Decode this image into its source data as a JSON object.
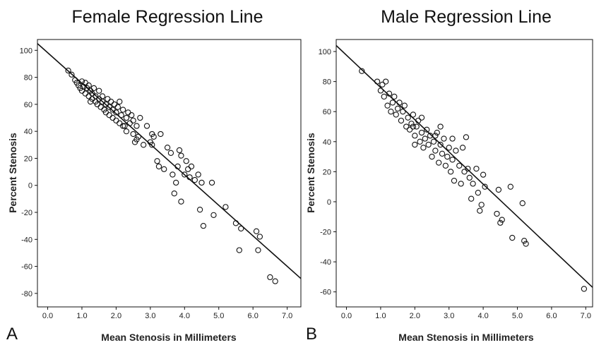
{
  "chart_data": [
    {
      "panel_label": "A",
      "type": "scatter",
      "title": "Female Regression Line",
      "xlabel": "Mean Stenosis in Millimeters",
      "ylabel": "Percent Stenosis",
      "xlim": [
        -0.3,
        7.4
      ],
      "ylim": [
        -90,
        108
      ],
      "xticks": [
        "0.0",
        "1.0",
        "2.0",
        "3.0",
        "4.0",
        "5.0",
        "6.0",
        "7.0"
      ],
      "yticks": [
        "100",
        "80",
        "60",
        "40",
        "20",
        "0",
        "-20",
        "-40",
        "-60",
        "-80"
      ],
      "grid": false,
      "regression_line": {
        "x": [
          -0.3,
          7.4
        ],
        "y": [
          105,
          -69
        ]
      },
      "points": [
        [
          0.6,
          85
        ],
        [
          0.7,
          82
        ],
        [
          0.8,
          78
        ],
        [
          0.85,
          76
        ],
        [
          0.9,
          74
        ],
        [
          0.95,
          72
        ],
        [
          1.0,
          77
        ],
        [
          1.0,
          70
        ],
        [
          1.05,
          73
        ],
        [
          1.1,
          76
        ],
        [
          1.1,
          68
        ],
        [
          1.15,
          72
        ],
        [
          1.2,
          66
        ],
        [
          1.2,
          74
        ],
        [
          1.25,
          70
        ],
        [
          1.3,
          64
        ],
        [
          1.3,
          68
        ],
        [
          1.35,
          72
        ],
        [
          1.4,
          62
        ],
        [
          1.4,
          66
        ],
        [
          1.45,
          60
        ],
        [
          1.5,
          64
        ],
        [
          1.5,
          70
        ],
        [
          1.55,
          58
        ],
        [
          1.6,
          62
        ],
        [
          1.6,
          66
        ],
        [
          1.65,
          56
        ],
        [
          1.7,
          60
        ],
        [
          1.75,
          64
        ],
        [
          1.8,
          52
        ],
        [
          1.8,
          58
        ],
        [
          1.85,
          62
        ],
        [
          1.9,
          50
        ],
        [
          1.9,
          56
        ],
        [
          1.95,
          60
        ],
        [
          2.0,
          48
        ],
        [
          2.0,
          54
        ],
        [
          2.05,
          58
        ],
        [
          2.1,
          46
        ],
        [
          2.1,
          62
        ],
        [
          2.15,
          52
        ],
        [
          2.2,
          56
        ],
        [
          2.25,
          44
        ],
        [
          2.3,
          50
        ],
        [
          2.3,
          40
        ],
        [
          2.35,
          54
        ],
        [
          2.4,
          46
        ],
        [
          2.45,
          52
        ],
        [
          2.5,
          38
        ],
        [
          2.5,
          48
        ],
        [
          2.55,
          32
        ],
        [
          2.6,
          44
        ],
        [
          2.65,
          36
        ],
        [
          2.7,
          50
        ],
        [
          2.8,
          30
        ],
        [
          2.9,
          44
        ],
        [
          3.0,
          32
        ],
        [
          3.05,
          38
        ],
        [
          3.1,
          36
        ],
        [
          3.2,
          18
        ],
        [
          3.25,
          14
        ],
        [
          3.3,
          38
        ],
        [
          3.4,
          12
        ],
        [
          3.5,
          28
        ],
        [
          3.6,
          24
        ],
        [
          3.65,
          8
        ],
        [
          3.7,
          -6
        ],
        [
          3.75,
          2
        ],
        [
          3.8,
          14
        ],
        [
          3.85,
          26
        ],
        [
          3.9,
          -12
        ],
        [
          3.9,
          22
        ],
        [
          4.0,
          8
        ],
        [
          4.05,
          18
        ],
        [
          4.1,
          12
        ],
        [
          4.15,
          6
        ],
        [
          4.2,
          14
        ],
        [
          4.3,
          4
        ],
        [
          4.4,
          8
        ],
        [
          4.45,
          -18
        ],
        [
          4.5,
          2
        ],
        [
          4.55,
          -30
        ],
        [
          4.8,
          2
        ],
        [
          4.85,
          -22
        ],
        [
          5.2,
          -16
        ],
        [
          5.5,
          -28
        ],
        [
          5.6,
          -48
        ],
        [
          5.65,
          -32
        ],
        [
          6.1,
          -34
        ],
        [
          6.15,
          -48
        ],
        [
          6.2,
          -38
        ],
        [
          6.5,
          -68
        ],
        [
          6.65,
          -71
        ],
        [
          2.2,
          44
        ],
        [
          1.7,
          54
        ],
        [
          2.6,
          34
        ],
        [
          3.05,
          30
        ],
        [
          1.25,
          62
        ]
      ]
    },
    {
      "panel_label": "B",
      "type": "scatter",
      "title": "Male Regression Line",
      "xlabel": "Mean Stenosis in Millimeters",
      "ylabel": "Percent Stenosis",
      "xlim": [
        -0.3,
        7.2
      ],
      "ylim": [
        -70,
        108
      ],
      "xticks": [
        "0.0",
        "1.0",
        "2.0",
        "3.0",
        "4.0",
        "5.0",
        "6.0",
        "7.0"
      ],
      "yticks": [
        "100",
        "80",
        "60",
        "40",
        "20",
        "0",
        "-20",
        "-40",
        "-60"
      ],
      "grid": false,
      "regression_line": {
        "x": [
          -0.3,
          7.2
        ],
        "y": [
          104,
          -57
        ]
      },
      "points": [
        [
          0.45,
          87
        ],
        [
          0.9,
          80
        ],
        [
          1.0,
          74
        ],
        [
          1.05,
          78
        ],
        [
          1.1,
          70
        ],
        [
          1.15,
          80
        ],
        [
          1.2,
          64
        ],
        [
          1.25,
          72
        ],
        [
          1.3,
          60
        ],
        [
          1.35,
          66
        ],
        [
          1.4,
          70
        ],
        [
          1.45,
          58
        ],
        [
          1.5,
          62
        ],
        [
          1.55,
          66
        ],
        [
          1.6,
          54
        ],
        [
          1.65,
          60
        ],
        [
          1.7,
          64
        ],
        [
          1.75,
          50
        ],
        [
          1.8,
          56
        ],
        [
          1.85,
          48
        ],
        [
          1.9,
          52
        ],
        [
          1.95,
          58
        ],
        [
          2.0,
          44
        ],
        [
          2.05,
          50
        ],
        [
          2.1,
          54
        ],
        [
          2.15,
          40
        ],
        [
          2.2,
          46
        ],
        [
          2.25,
          36
        ],
        [
          2.3,
          42
        ],
        [
          2.35,
          48
        ],
        [
          2.4,
          38
        ],
        [
          2.45,
          44
        ],
        [
          2.5,
          30
        ],
        [
          2.55,
          40
        ],
        [
          2.6,
          34
        ],
        [
          2.65,
          46
        ],
        [
          2.7,
          26
        ],
        [
          2.75,
          38
        ],
        [
          2.8,
          32
        ],
        [
          2.85,
          42
        ],
        [
          2.9,
          24
        ],
        [
          2.95,
          30
        ],
        [
          3.0,
          36
        ],
        [
          3.05,
          20
        ],
        [
          3.1,
          28
        ],
        [
          3.15,
          14
        ],
        [
          3.2,
          34
        ],
        [
          3.3,
          24
        ],
        [
          3.35,
          12
        ],
        [
          3.4,
          36
        ],
        [
          3.45,
          20
        ],
        [
          3.5,
          43
        ],
        [
          3.55,
          22
        ],
        [
          3.6,
          16
        ],
        [
          3.65,
          2
        ],
        [
          3.7,
          12
        ],
        [
          3.8,
          22
        ],
        [
          3.85,
          6
        ],
        [
          3.9,
          -6
        ],
        [
          3.95,
          -2
        ],
        [
          4.0,
          18
        ],
        [
          4.05,
          10
        ],
        [
          4.4,
          -8
        ],
        [
          4.45,
          8
        ],
        [
          4.5,
          -14
        ],
        [
          4.55,
          -12
        ],
        [
          4.8,
          10
        ],
        [
          4.85,
          -24
        ],
        [
          5.15,
          -1
        ],
        [
          5.2,
          -26
        ],
        [
          5.25,
          -28
        ],
        [
          6.95,
          -58
        ],
        [
          2.2,
          56
        ],
        [
          1.95,
          50
        ],
        [
          2.6,
          44
        ],
        [
          3.1,
          42
        ],
        [
          2.0,
          38
        ],
        [
          2.75,
          50
        ]
      ]
    }
  ]
}
